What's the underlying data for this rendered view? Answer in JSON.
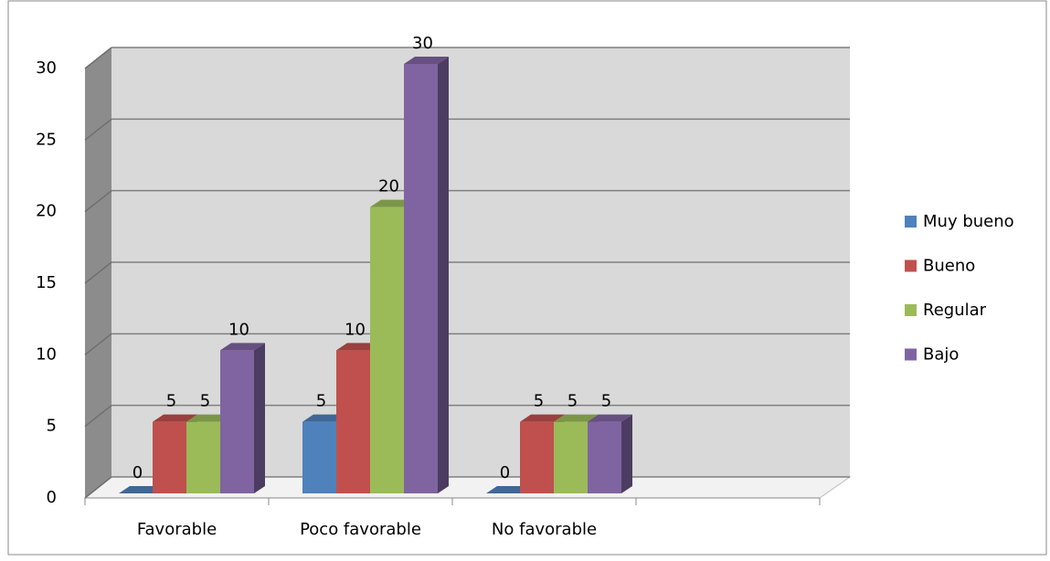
{
  "chart_data": {
    "type": "bar3d",
    "categories": [
      "Favorable",
      "Poco favorable",
      "No favorable",
      null
    ],
    "series": [
      {
        "name": "Muy bueno",
        "color": "#4f81bd",
        "values": [
          0,
          5,
          0,
          null
        ]
      },
      {
        "name": "Bueno",
        "color": "#c0504d",
        "values": [
          5,
          10,
          5,
          null
        ]
      },
      {
        "name": "Regular",
        "color": "#9bbb59",
        "values": [
          5,
          20,
          5,
          null
        ]
      },
      {
        "name": "Bajo",
        "color": "#8064a2",
        "values": [
          10,
          30,
          5,
          null
        ]
      }
    ],
    "ylim": [
      0,
      30
    ],
    "yticks": [
      0,
      5,
      10,
      15,
      20,
      25,
      30
    ],
    "grid": true,
    "legend": "right"
  }
}
